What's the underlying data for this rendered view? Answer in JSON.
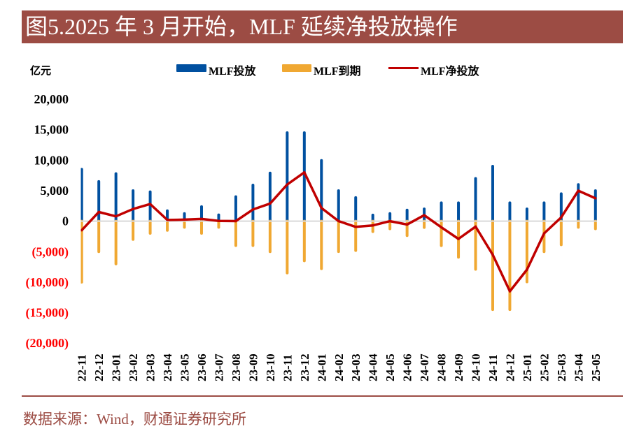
{
  "header": {
    "title": "图5.2025 年 3 月开始，MLF 延续净投放操作"
  },
  "colors": {
    "banner": "#9c4c44",
    "title_text": "#ffffff",
    "source_text": "#9c4c44",
    "zero_line": "#d9d9d9"
  },
  "chart_data": {
    "type": "bar",
    "title": "图5.2025 年 3 月开始，MLF 延续净投放操作",
    "xlabel": "",
    "ylabel": "亿元",
    "unit_label": "亿元",
    "ylim": [
      -20000,
      20000
    ],
    "grid": false,
    "legend_position": "top",
    "y_ticks": [
      20000,
      15000,
      10000,
      5000,
      0,
      -5000,
      -10000,
      -15000,
      -20000
    ],
    "y_tick_labels": [
      "20,000",
      "15,000",
      "10,000",
      "5,000",
      "0",
      "(5,000)",
      "(10,000)",
      "(15,000)",
      "(20,000)"
    ],
    "tick_colors": {
      "positive": "#000000",
      "negative": "#ff0000"
    },
    "categories": [
      "22-11",
      "22-12",
      "23-01",
      "23-02",
      "23-03",
      "23-04",
      "23-05",
      "23-06",
      "23-07",
      "23-08",
      "23-09",
      "23-10",
      "23-11",
      "23-12",
      "24-01",
      "24-02",
      "24-03",
      "24-04",
      "24-05",
      "24-06",
      "24-07",
      "24-08",
      "24-09",
      "24-10",
      "24-11",
      "24-12",
      "25-01",
      "25-02",
      "25-03",
      "25-04",
      "25-05"
    ],
    "series": [
      {
        "name": "MLF投放",
        "type": "bar",
        "color": "#0050a0",
        "values": [
          8500,
          6500,
          7790,
          4990,
          4810,
          1700,
          1250,
          2370,
          1030,
          4010,
          5910,
          7890,
          14500,
          14500,
          9950,
          5000,
          3870,
          1000,
          1250,
          1820,
          2000,
          3000,
          3000,
          7000,
          9000,
          3000,
          2000,
          3000,
          4500,
          6000,
          5000
        ]
      },
      {
        "name": "MLF到期",
        "type": "bar",
        "color": "#f0a832",
        "values": [
          -10000,
          -5000,
          -7000,
          -3000,
          -2000,
          -1500,
          -1000,
          -2000,
          -1000,
          -4000,
          -4000,
          -5000,
          -8500,
          -6500,
          -7790,
          -4990,
          -4810,
          -1700,
          -1250,
          -2370,
          -1030,
          -4010,
          -5910,
          -7890,
          -14500,
          -14500,
          -9950,
          -5000,
          -3870,
          -1000,
          -1250
        ]
      },
      {
        "name": "MLF净投放",
        "type": "line",
        "color": "#c00000",
        "values": [
          -1500,
          1500,
          790,
          1990,
          2810,
          200,
          250,
          370,
          30,
          10,
          1910,
          2890,
          6000,
          8000,
          2160,
          10,
          -940,
          -700,
          0,
          -550,
          970,
          -1010,
          -2910,
          -890,
          -5500,
          -11500,
          -7950,
          -2000,
          630,
          5000,
          3750
        ]
      }
    ]
  },
  "footer": {
    "source": "数据来源：Wind，财通证券研究所"
  }
}
